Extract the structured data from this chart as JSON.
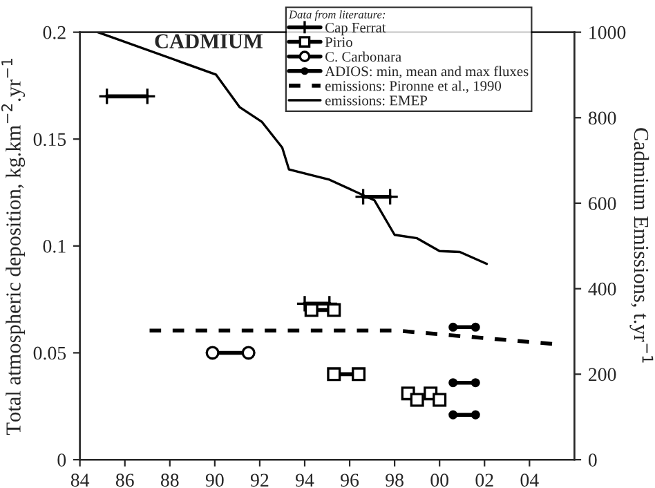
{
  "chart_data": {
    "type": "line",
    "title": "CADMIUM",
    "ylabel": "Total atmospheric deposition, kg.km$^{−2}$.yr$^{−1}$",
    "y2label": "Cadmium Emissions, t.yr$^{−1}$",
    "legend_title": "Data from literature:",
    "legend": "top",
    "xlim": [
      1984,
      2006
    ],
    "xticks": [
      {
        "value": 1984,
        "label": "84"
      },
      {
        "value": 1986,
        "label": "86"
      },
      {
        "value": 1988,
        "label": "88"
      },
      {
        "value": 1990,
        "label": "90"
      },
      {
        "value": 1992,
        "label": "92"
      },
      {
        "value": 1994,
        "label": "94"
      },
      {
        "value": 1996,
        "label": "96"
      },
      {
        "value": 1998,
        "label": "98"
      },
      {
        "value": 2000,
        "label": "00"
      },
      {
        "value": 2002,
        "label": "02"
      },
      {
        "value": 2004,
        "label": "04"
      }
    ],
    "ylim": [
      0,
      0.2
    ],
    "yticks": [
      0,
      0.05,
      {
        "value": 0.1,
        "label": "0.1"
      },
      0.15,
      {
        "value": 0.2,
        "label": "0.2"
      }
    ],
    "y2lim": [
      0,
      1000
    ],
    "y2ticks": [
      0,
      200,
      400,
      600,
      800,
      1000
    ],
    "series": [
      {
        "name": "Cap Ferrat",
        "color": "#000000",
        "marker": "cross",
        "line_style": "solid",
        "x": [
          1985.2,
          1987.0
        ],
        "values": [
          0.17,
          0.17
        ]
      },
      {
        "color": "#000000",
        "marker": "cross",
        "line_style": "solid",
        "x": [
          1994.0,
          1995.1
        ],
        "values": [
          0.073,
          0.073
        ]
      },
      {
        "color": "#000000",
        "marker": "cross",
        "line_style": "solid",
        "x": [
          1996.6,
          1997.8
        ],
        "values": [
          0.123,
          0.123
        ]
      },
      {
        "name": "Pirio",
        "color": "#000000",
        "marker": "square",
        "line_style": "solid",
        "x": [
          1994.3,
          1995.3
        ],
        "values": [
          0.07,
          0.07
        ]
      },
      {
        "color": "#000000",
        "marker": "square",
        "line_style": "solid",
        "x": [
          1995.3,
          1996.4
        ],
        "values": [
          0.04,
          0.04
        ]
      },
      {
        "type": "scatter",
        "color": "#000000",
        "marker": "square",
        "x": [
          1998.6,
          1999.0,
          1999.6,
          2000.0
        ],
        "values": [
          0.031,
          0.028,
          0.031,
          0.028
        ]
      },
      {
        "name": "C. Carbonara",
        "color": "#000000",
        "marker": "circle",
        "line_style": "solid",
        "x": [
          1989.9,
          1991.5
        ],
        "values": [
          0.05,
          0.05
        ]
      },
      {
        "name": "ADIOS: min, mean and max fluxes",
        "color": "#000000",
        "marker": "dot",
        "line_style": "solid",
        "x": [
          2000.6,
          2001.6
        ],
        "values": [
          0.062,
          0.062
        ]
      },
      {
        "color": "#000000",
        "marker": "dot",
        "line_style": "solid",
        "x": [
          2000.6,
          2001.6
        ],
        "values": [
          0.036,
          0.036
        ]
      },
      {
        "color": "#000000",
        "marker": "dot",
        "line_style": "solid",
        "x": [
          2000.6,
          2001.6
        ],
        "values": [
          0.021,
          0.021
        ]
      },
      {
        "name": "emissions: Pironne et al., 1990",
        "color": "#000000",
        "marker": "none",
        "line_style": "dashed",
        "axis": "y2",
        "x": [
          1987.1,
          1998.1,
          2005.2
        ],
        "values": [
          302,
          302,
          270
        ]
      },
      {
        "name": "emissions: EMEP",
        "color": "#000000",
        "marker": "none",
        "line_style": "solid",
        "axis": "y2",
        "x": [
          1984.8,
          1990.05,
          1991.1,
          1992.1,
          1993.0,
          1993.3,
          1995.1,
          1997.1,
          1998.0,
          1999.0,
          2000.0,
          2000.9,
          2002.1
        ],
        "values": [
          1000,
          901,
          825,
          790,
          730,
          679,
          655,
          607,
          526,
          518,
          488,
          486,
          458
        ]
      }
    ]
  }
}
